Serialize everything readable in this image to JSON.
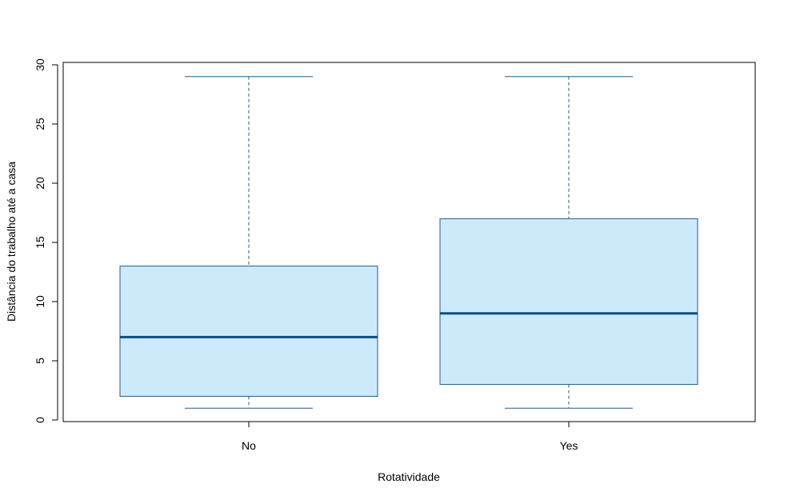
{
  "chart_data": {
    "type": "box",
    "title": "",
    "xlabel": "Rotatividade",
    "ylabel": "Distância do trabalho até a casa",
    "categories": [
      "No",
      "Yes"
    ],
    "boxes": [
      {
        "category": "No",
        "min": 1,
        "q1": 2,
        "median": 7,
        "q3": 13,
        "max": 29
      },
      {
        "category": "Yes",
        "min": 1,
        "q1": 3,
        "median": 9,
        "q3": 17,
        "max": 29
      }
    ],
    "ylim": [
      0,
      30
    ],
    "yticks": [
      "0",
      "5",
      "10",
      "15",
      "20",
      "25",
      "30"
    ],
    "grid": false,
    "colors": {
      "box_fill": "#cdeafb",
      "box_stroke": "#1f5f8b",
      "median": "#0a4f7f"
    }
  }
}
